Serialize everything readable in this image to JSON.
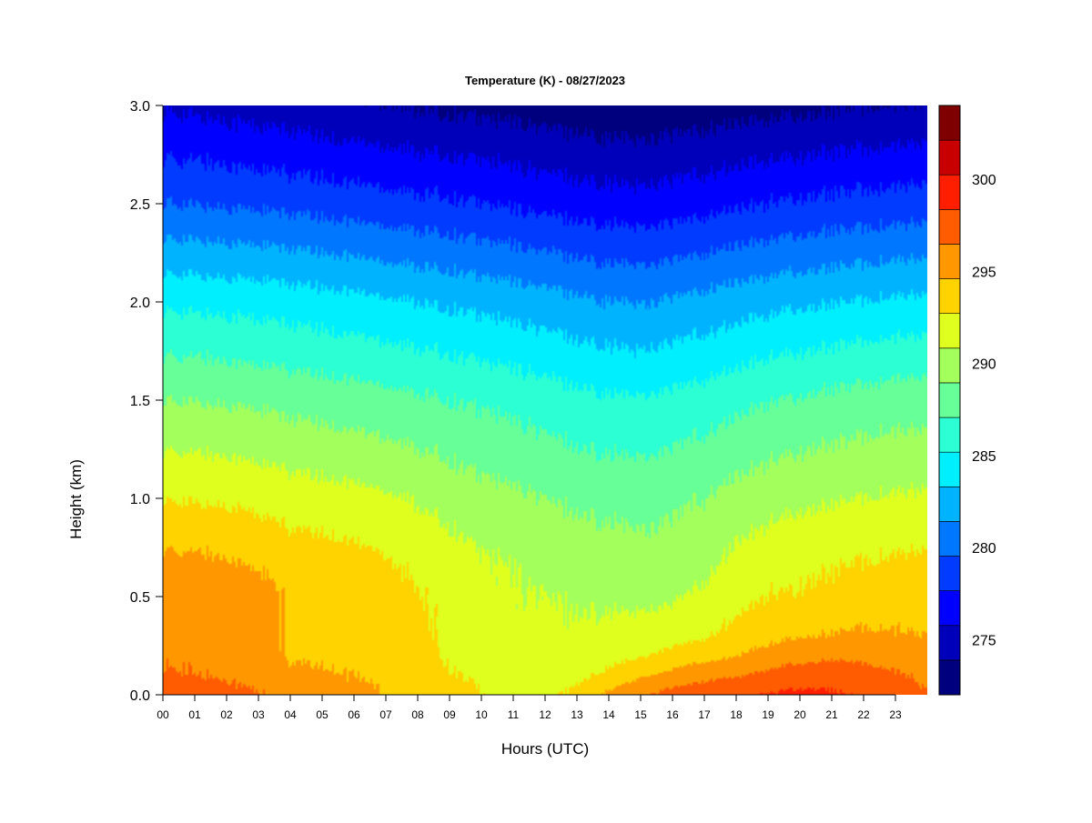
{
  "chart_data": {
    "type": "heatmap",
    "title": "Temperature (K) - 08/27/2023",
    "xlabel": "Hours (UTC)",
    "ylabel": "Height (km)",
    "xlim": [
      0,
      24
    ],
    "ylim": [
      0,
      3.0
    ],
    "x_ticks": [
      0,
      1,
      2,
      3,
      4,
      5,
      6,
      7,
      8,
      9,
      10,
      11,
      12,
      13,
      14,
      15,
      16,
      17,
      18,
      19,
      20,
      21,
      22,
      23
    ],
    "x_tick_labels": [
      "00",
      "01",
      "02",
      "03",
      "04",
      "05",
      "06",
      "07",
      "08",
      "09",
      "10",
      "11",
      "12",
      "13",
      "14",
      "15",
      "16",
      "17",
      "18",
      "19",
      "20",
      "21",
      "22",
      "23"
    ],
    "y_ticks": [
      0.0,
      0.5,
      1.0,
      1.5,
      2.0,
      2.5,
      3.0
    ],
    "y_tick_labels": [
      "0.0",
      "0.5",
      "1.0",
      "1.5",
      "2.0",
      "2.5",
      "3.0"
    ],
    "colorbar": {
      "range": [
        272,
        304
      ],
      "levels": [
        272,
        274,
        276,
        278,
        280,
        282,
        284,
        286,
        288,
        290,
        292,
        294,
        296,
        298,
        300,
        302,
        304
      ],
      "colors": [
        "#00007f",
        "#0000bb",
        "#0000ff",
        "#003bff",
        "#0077ff",
        "#00b3ff",
        "#00efff",
        "#2bffd3",
        "#67ff97",
        "#a3ff5b",
        "#dfff1f",
        "#ffd300",
        "#ff9700",
        "#ff5b00",
        "#ff1f00",
        "#c90000",
        "#7f0000"
      ],
      "ticks": [
        275,
        280,
        285,
        290,
        295,
        300
      ],
      "tick_labels": [
        "275",
        "280",
        "285",
        "290",
        "295",
        "300"
      ]
    },
    "hours": [
      0,
      1,
      2,
      3,
      4,
      5,
      6,
      7,
      8,
      9,
      10,
      11,
      12,
      13,
      14,
      15,
      16,
      17,
      18,
      19,
      20,
      21,
      22,
      23,
      23.9
    ],
    "heights_km": [
      0.0,
      0.1,
      0.2,
      0.3,
      0.5,
      0.7,
      1.0,
      1.5,
      2.0,
      2.5,
      3.0
    ],
    "temperature_k": [
      [
        299.2,
        299.0,
        298.6,
        298.2,
        297.0,
        296.8,
        296.5,
        296.0,
        295.4,
        294.8,
        294.0,
        293.4,
        293.5,
        294.6,
        296.5,
        297.7,
        298.8,
        299.3,
        299.5,
        300.1,
        300.5,
        300.3,
        299.7,
        299.0,
        298.2
      ],
      [
        298.2,
        298.0,
        297.8,
        297.4,
        296.5,
        296.3,
        296.0,
        295.7,
        295.0,
        294.2,
        293.6,
        293.2,
        293.0,
        293.4,
        294.5,
        295.7,
        296.6,
        297.4,
        297.8,
        298.5,
        299.0,
        299.2,
        298.8,
        298.2,
        297.6
      ],
      [
        297.8,
        297.6,
        297.3,
        297.0,
        295.8,
        295.6,
        295.4,
        295.2,
        294.6,
        293.8,
        293.0,
        292.7,
        292.6,
        292.7,
        293.2,
        293.8,
        294.6,
        295.3,
        295.9,
        296.7,
        297.4,
        297.6,
        297.5,
        297.2,
        296.8
      ],
      [
        297.6,
        297.5,
        297.3,
        296.9,
        295.6,
        295.5,
        295.3,
        295.1,
        294.5,
        293.5,
        292.7,
        292.4,
        292.4,
        292.3,
        292.6,
        292.9,
        293.2,
        293.8,
        294.6,
        295.4,
        295.9,
        296.1,
        296.3,
        296.2,
        296.0
      ],
      [
        297.7,
        297.5,
        297.3,
        296.8,
        295.7,
        295.5,
        295.1,
        294.8,
        294.2,
        293.3,
        292.5,
        292.2,
        292.0,
        291.8,
        291.6,
        291.5,
        291.7,
        292.4,
        293.4,
        294.0,
        294.2,
        294.5,
        294.8,
        295.0,
        295.0
      ],
      [
        296.3,
        296.2,
        296.0,
        295.6,
        295.0,
        294.8,
        294.5,
        294.1,
        293.4,
        292.8,
        292.1,
        291.8,
        291.4,
        291.2,
        290.9,
        290.6,
        290.8,
        291.3,
        292.4,
        293.0,
        293.4,
        293.7,
        293.9,
        294.1,
        294.2
      ],
      [
        293.9,
        293.8,
        293.7,
        293.4,
        293.0,
        292.8,
        292.6,
        292.3,
        291.8,
        291.2,
        290.7,
        290.4,
        290.0,
        289.6,
        289.4,
        289.3,
        289.6,
        290.0,
        290.7,
        291.2,
        291.6,
        291.8,
        292.0,
        292.2,
        292.3
      ],
      [
        290.0,
        289.9,
        289.8,
        289.6,
        289.3,
        289.1,
        288.9,
        288.7,
        288.3,
        288.0,
        287.7,
        287.4,
        287.0,
        286.6,
        286.3,
        286.2,
        286.5,
        286.9,
        287.4,
        287.9,
        288.2,
        288.5,
        288.8,
        289.0,
        289.0
      ],
      [
        285.6,
        285.5,
        285.4,
        285.2,
        285.0,
        284.8,
        284.6,
        284.3,
        284.0,
        283.7,
        283.4,
        283.1,
        282.8,
        282.4,
        282.1,
        281.9,
        282.2,
        282.6,
        283.0,
        283.4,
        283.7,
        283.9,
        284.1,
        284.3,
        284.4
      ],
      [
        280.0,
        279.9,
        279.8,
        279.6,
        279.4,
        279.2,
        279.0,
        278.8,
        278.5,
        278.3,
        278.0,
        277.7,
        277.4,
        277.1,
        276.9,
        276.8,
        277.0,
        277.3,
        277.7,
        278.0,
        278.3,
        278.5,
        278.7,
        278.8,
        278.9
      ],
      [
        275.7,
        275.5,
        275.3,
        275.0,
        274.8,
        274.5,
        274.3,
        274.1,
        273.8,
        273.6,
        273.4,
        273.2,
        273.0,
        272.8,
        272.6,
        272.5,
        272.7,
        272.9,
        273.1,
        273.3,
        273.5,
        273.7,
        273.9,
        274.0,
        274.1
      ]
    ]
  }
}
